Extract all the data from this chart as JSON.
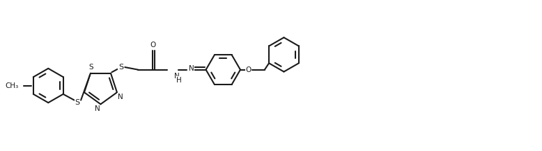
{
  "bg": "#ffffff",
  "lc": "#1a1a1a",
  "lw": 1.5,
  "fs": 8.0,
  "dpi": 100,
  "figsize": [
    7.78,
    2.18
  ],
  "xlim": [
    0,
    10.5
  ],
  "ylim": [
    0.2,
    3.2
  ]
}
